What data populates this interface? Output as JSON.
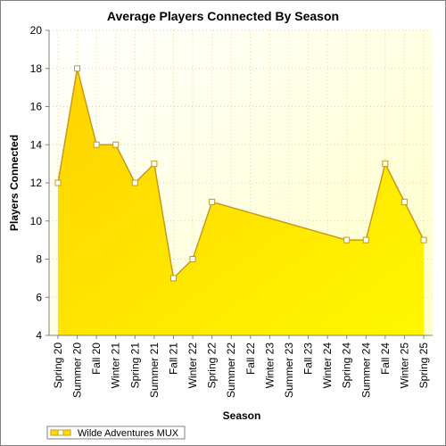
{
  "chart_data": {
    "type": "area",
    "title": "Average Players Connected By Season",
    "xlabel": "Season",
    "ylabel": "Players Connected",
    "ylim": [
      4,
      20
    ],
    "yticks": [
      4,
      6,
      8,
      10,
      12,
      14,
      16,
      18,
      20
    ],
    "categories": [
      "Spring 20",
      "Summer 20",
      "Fall 20",
      "Winter 21",
      "Spring 21",
      "Summer 21",
      "Fall 21",
      "Winter 22",
      "Spring 22",
      "Summer 22",
      "Fall 22",
      "Winter 23",
      "Summer 23",
      "Fall 23",
      "Winter 24",
      "Spring 24",
      "Summer 24",
      "Fall 24",
      "Winter 25",
      "Spring 25"
    ],
    "grid": true,
    "legend_position": "bottom-left",
    "series": [
      {
        "name": "Wilde Adventures MUX",
        "values": [
          12,
          18,
          14,
          14,
          12,
          13,
          7,
          8,
          11,
          null,
          null,
          null,
          null,
          null,
          null,
          9,
          9,
          13,
          11,
          9
        ],
        "color": "#ffdd00",
        "line_color": "#c89a1a"
      }
    ]
  }
}
